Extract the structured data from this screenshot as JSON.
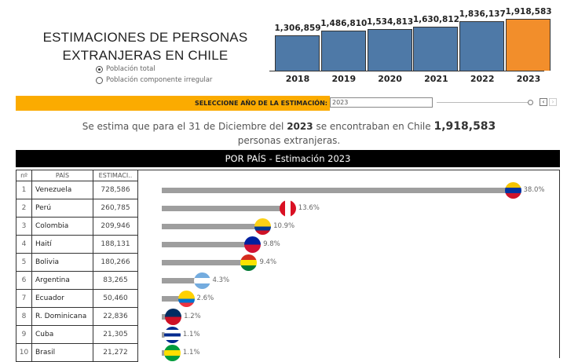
{
  "title_line1": "ESTIMACIONES DE PERSONAS",
  "title_line2": "EXTRANJERAS EN CHILE",
  "radio_options": [
    {
      "label": "Población total",
      "selected": true
    },
    {
      "label": "Población componente irregular",
      "selected": false
    }
  ],
  "chart_data": {
    "type": "bar",
    "categories": [
      "2018",
      "2019",
      "2020",
      "2021",
      "2022",
      "2023"
    ],
    "values": [
      1306859,
      1486810,
      1534813,
      1630812,
      1836137,
      1918583
    ],
    "labels": [
      "1,306,859",
      "1,486,810",
      "1,534,813",
      "1,630,812",
      "1,836,137",
      "1,918,583"
    ],
    "colors": {
      "default": "#4e79a7",
      "selected": "#f28e2b"
    },
    "selected": "2023"
  },
  "filter": {
    "label": "SELECCIONE AÑO DE LA ESTIMACIÓN:",
    "value": "2023",
    "accent": "#fbab00"
  },
  "summary": {
    "pre": "Se estima que para el 31 de Diciembre del",
    "year": "2023",
    "mid": "se encontraban en Chile",
    "total": "1,918,583",
    "line2": "personas extranjeras."
  },
  "section_title": "POR PAÍS - Estimación 2023",
  "table": {
    "headers": [
      "nº",
      "PAÍS",
      "ESTIMACI.."
    ],
    "rows": [
      {
        "n": "1",
        "pais": "Venezuela",
        "est": "728,586",
        "pct": "38.0%",
        "p": 38.0,
        "flag": [
          "#f4c300",
          "#0033a0",
          "#cf142b"
        ]
      },
      {
        "n": "2",
        "pais": "Perú",
        "est": "260,785",
        "pct": "13.6%",
        "p": 13.6,
        "flag": [
          "#d91023",
          "#ffffff",
          "#d91023"
        ],
        "vertical": true
      },
      {
        "n": "3",
        "pais": "Colombia",
        "est": "209,946",
        "pct": "10.9%",
        "p": 10.9,
        "flag": [
          "#fcd116",
          "#fcd116",
          "#003893",
          "#ce1126"
        ]
      },
      {
        "n": "4",
        "pais": "Haití",
        "est": "188,131",
        "pct": "9.8%",
        "p": 9.8,
        "flag": [
          "#00209f",
          "#d21034"
        ]
      },
      {
        "n": "5",
        "pais": "Bolivia",
        "est": "180,266",
        "pct": "9.4%",
        "p": 9.4,
        "flag": [
          "#d52b1e",
          "#f9e300",
          "#007934"
        ]
      },
      {
        "n": "6",
        "pais": "Argentina",
        "est": "83,265",
        "pct": "4.3%",
        "p": 4.3,
        "flag": [
          "#74acdf",
          "#ffffff",
          "#74acdf"
        ]
      },
      {
        "n": "7",
        "pais": "Ecuador",
        "est": "50,460",
        "pct": "2.6%",
        "p": 2.6,
        "flag": [
          "#ffd100",
          "#ffd100",
          "#0072ce",
          "#ef3340"
        ]
      },
      {
        "n": "8",
        "pais": "R. Dominicana",
        "est": "22,836",
        "pct": "1.2%",
        "p": 1.2,
        "flag": [
          "#002d62",
          "#ce1126"
        ]
      },
      {
        "n": "9",
        "pais": "Cuba",
        "est": "21,305",
        "pct": "1.1%",
        "p": 1.1,
        "flag": [
          "#002a8f",
          "#ffffff",
          "#002a8f",
          "#ffffff",
          "#002a8f"
        ]
      },
      {
        "n": "10",
        "pais": "Brasil",
        "est": "21,272",
        "pct": "1.1%",
        "p": 1.1,
        "flag": [
          "#009c3b",
          "#ffdf00",
          "#009c3b"
        ]
      }
    ]
  }
}
